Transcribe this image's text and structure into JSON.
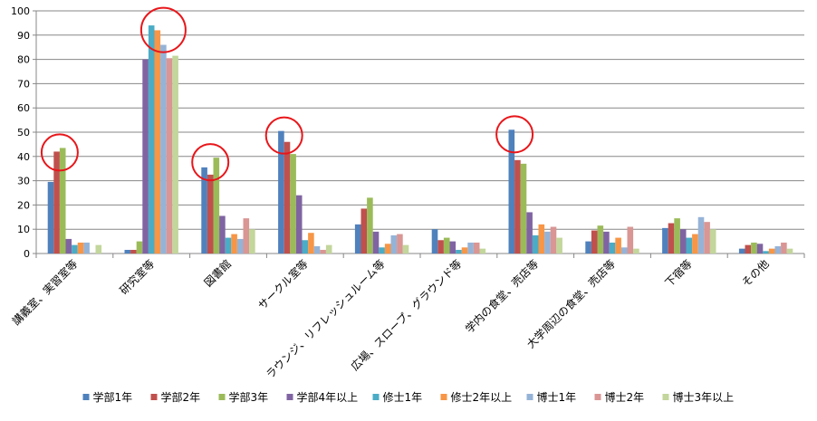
{
  "chart_data": {
    "type": "bar",
    "title": "",
    "xlabel": "",
    "ylabel": "",
    "ylim": [
      0,
      100
    ],
    "yticks": [
      0,
      10,
      20,
      30,
      40,
      50,
      60,
      70,
      80,
      90,
      100
    ],
    "grid": true,
    "legend_position": "bottom",
    "categories": [
      "講義室、実習室等",
      "研究室等",
      "図書館",
      "サークル室等",
      "ラウンジ、リフレッシュルーム等",
      "広場、スロープ、グラウンド等",
      "学内の食堂、売店等",
      "大学周辺の食堂、売店等",
      "下宿等",
      "その他"
    ],
    "series": [
      {
        "name": "学部1年",
        "color": "#4f81bd",
        "values": [
          29.5,
          1.5,
          35.5,
          50.5,
          12,
          10,
          51,
          5,
          10.5,
          2
        ]
      },
      {
        "name": "学部2年",
        "color": "#c0504d",
        "values": [
          42,
          1.5,
          32.5,
          46,
          18.5,
          5.5,
          38.5,
          9.5,
          12.5,
          3.5
        ]
      },
      {
        "name": "学部3年",
        "color": "#9bbb59",
        "values": [
          43.5,
          5,
          39.5,
          41,
          23,
          6.5,
          37,
          11.5,
          14.5,
          4.5
        ]
      },
      {
        "name": "学部4年以上",
        "color": "#8064a2",
        "values": [
          6,
          80,
          15.5,
          24,
          9,
          5,
          17,
          9,
          10,
          4
        ]
      },
      {
        "name": "修士1年",
        "color": "#4bacc6",
        "values": [
          3.5,
          94,
          6.5,
          5.5,
          2.5,
          1.5,
          7.5,
          4.5,
          6.5,
          1
        ]
      },
      {
        "name": "修士2年以上",
        "color": "#f79646",
        "values": [
          4.5,
          92,
          8,
          8.5,
          4,
          2.5,
          12,
          6.5,
          8,
          2
        ]
      },
      {
        "name": "博士1年",
        "color": "#95b3d7",
        "values": [
          4.5,
          86,
          6,
          3,
          7.5,
          4.5,
          9,
          2.5,
          15,
          3
        ]
      },
      {
        "name": "博士2年",
        "color": "#d99694",
        "values": [
          0,
          80.5,
          14.5,
          1.5,
          8,
          4.5,
          11,
          11,
          13,
          4.5
        ]
      },
      {
        "name": "博士3年以上",
        "color": "#c3d69b",
        "values": [
          3.5,
          81.5,
          10,
          3.5,
          3.5,
          2,
          6.5,
          2,
          10,
          2
        ]
      }
    ],
    "highlighted_bars": [
      {
        "category": "講義室、実習室等",
        "series": [
          "学部2年",
          "学部3年"
        ]
      },
      {
        "category": "研究室等",
        "series": [
          "修士1年",
          "修士2年以上",
          "博士1年",
          "博士2年",
          "博士3年以上"
        ]
      },
      {
        "category": "図書館",
        "series": [
          "学部1年",
          "学部2年",
          "学部3年"
        ]
      },
      {
        "category": "サークル室等",
        "series": [
          "学部1年",
          "学部2年"
        ]
      },
      {
        "category": "学内の食堂、売店等",
        "series": [
          "学部1年",
          "学部2年"
        ]
      }
    ],
    "highlight_color": "#e8161a"
  }
}
